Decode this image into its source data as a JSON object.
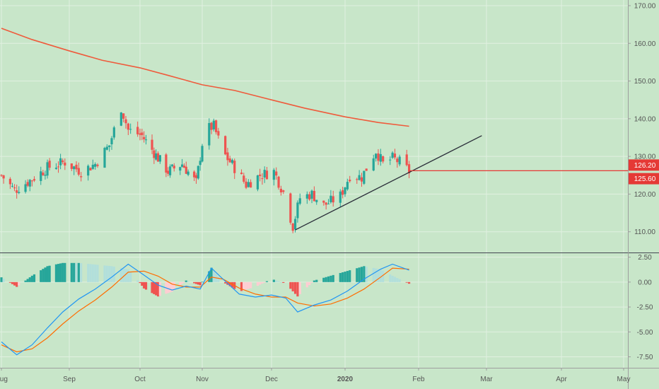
{
  "colors": {
    "background": "#c8e6c9",
    "grid": "#e1f0e1",
    "up": "#26a69a",
    "down": "#ef5350",
    "sma": "#ef5b3c",
    "trendline": "#2a2e39",
    "support": "#e53935",
    "macd": "#2196f3",
    "signal": "#ff6d00",
    "hist_up_strong": "#26a69a",
    "hist_up_weak": "#b2dfdb",
    "hist_down_strong": "#ef5350",
    "hist_down_weak": "#ffcdd2",
    "axis_text": "#555555"
  },
  "chart_data": [
    {
      "type": "candlestick",
      "y_ticks": [
        "110.00",
        "120.00",
        "130.00",
        "140.00",
        "150.00",
        "160.00",
        "170.00"
      ],
      "y_tick_values": [
        110,
        120,
        130,
        140,
        150,
        160,
        170
      ],
      "ylim": [
        104.5,
        171.5
      ],
      "x_tick_labels": [
        "Aug",
        "Sep",
        "Oct",
        "Nov",
        "Dec",
        "2020",
        "Feb",
        "Mar",
        "Apr",
        "May"
      ],
      "x_tick_dates": [
        "2019-08-01",
        "2019-09-01",
        "2019-10-01",
        "2019-11-01",
        "2019-12-01",
        "2020-01-01",
        "2020-02-01",
        "2020-03-01",
        "2020-04-01",
        "2020-05-01"
      ],
      "xlim": [
        "2019-08-01",
        "2020-05-01"
      ],
      "grid": true,
      "price_badges": [
        {
          "label": "126.20",
          "value": 126.2,
          "color": "#e53935"
        },
        {
          "label": "125.60",
          "value": 125.6,
          "color": "#e53935"
        }
      ],
      "support_level": 126.2,
      "sma_series": [
        [
          "2019-08-01",
          164.0
        ],
        [
          "2019-08-15",
          161.0
        ],
        [
          "2019-09-01",
          158.0
        ],
        [
          "2019-09-15",
          155.5
        ],
        [
          "2019-10-01",
          153.5
        ],
        [
          "2019-10-15",
          151.5
        ],
        [
          "2019-11-01",
          149.0
        ],
        [
          "2019-11-15",
          147.5
        ],
        [
          "2019-12-01",
          145.0
        ],
        [
          "2019-12-15",
          142.8
        ],
        [
          "2020-01-01",
          140.5
        ],
        [
          "2020-01-15",
          139.0
        ],
        [
          "2020-01-28",
          138.0
        ]
      ],
      "trendline": [
        [
          "2019-12-11",
          110.5
        ],
        [
          "2020-02-28",
          135.5
        ]
      ],
      "anchor_candles": [
        [
          "2019-08-01",
          125.0
        ],
        [
          "2019-08-07",
          121.0
        ],
        [
          "2019-08-15",
          124.0
        ],
        [
          "2019-08-22",
          127.0
        ],
        [
          "2019-08-30",
          128.5
        ],
        [
          "2019-09-06",
          126.0
        ],
        [
          "2019-09-12",
          128.0
        ],
        [
          "2019-09-18",
          133.0
        ],
        [
          "2019-09-23",
          143.0
        ],
        [
          "2019-09-26",
          137.0
        ],
        [
          "2019-10-02",
          135.5
        ],
        [
          "2019-10-08",
          131.0
        ],
        [
          "2019-10-15",
          126.0
        ],
        [
          "2019-10-22",
          128.0
        ],
        [
          "2019-10-29",
          123.0
        ],
        [
          "2019-11-02",
          137.0
        ],
        [
          "2019-11-06",
          138.0
        ],
        [
          "2019-11-10",
          131.0
        ],
        [
          "2019-11-15",
          127.0
        ],
        [
          "2019-11-20",
          122.5
        ],
        [
          "2019-11-26",
          125.0
        ],
        [
          "2019-12-02",
          126.0
        ],
        [
          "2019-12-06",
          120.5
        ],
        [
          "2019-12-10",
          111.5
        ],
        [
          "2019-12-13",
          119.0
        ],
        [
          "2019-12-18",
          120.0
        ],
        [
          "2019-12-23",
          117.0
        ],
        [
          "2019-12-30",
          119.5
        ],
        [
          "2020-01-03",
          125.0
        ],
        [
          "2020-01-08",
          124.5
        ],
        [
          "2020-01-14",
          131.5
        ],
        [
          "2020-01-17",
          128.0
        ],
        [
          "2020-01-21",
          129.5
        ],
        [
          "2020-01-24",
          128.5
        ],
        [
          "2020-01-28",
          126.0
        ]
      ]
    },
    {
      "type": "macd",
      "y_ticks": [
        "-7.50",
        "-5.00",
        "-2.50",
        "0.00",
        "2.50"
      ],
      "y_tick_values": [
        -7.5,
        -5.0,
        -2.5,
        0.0,
        2.5
      ],
      "ylim": [
        -8.6,
        2.9
      ],
      "macd_series": [
        [
          "2019-08-01",
          -6.0
        ],
        [
          "2019-08-08",
          -7.3
        ],
        [
          "2019-08-15",
          -6.3
        ],
        [
          "2019-08-22",
          -4.6
        ],
        [
          "2019-08-29",
          -3.0
        ],
        [
          "2019-09-05",
          -1.7
        ],
        [
          "2019-09-12",
          -0.7
        ],
        [
          "2019-09-19",
          0.5
        ],
        [
          "2019-09-26",
          1.8
        ],
        [
          "2019-10-03",
          0.7
        ],
        [
          "2019-10-10",
          -0.3
        ],
        [
          "2019-10-17",
          -0.8
        ],
        [
          "2019-10-24",
          -0.4
        ],
        [
          "2019-10-31",
          -0.7
        ],
        [
          "2019-11-05",
          1.4
        ],
        [
          "2019-11-10",
          0.3
        ],
        [
          "2019-11-17",
          -1.2
        ],
        [
          "2019-11-24",
          -1.5
        ],
        [
          "2019-12-01",
          -1.3
        ],
        [
          "2019-12-07",
          -1.6
        ],
        [
          "2019-12-12",
          -3.0
        ],
        [
          "2019-12-19",
          -2.3
        ],
        [
          "2019-12-26",
          -1.8
        ],
        [
          "2020-01-02",
          -0.9
        ],
        [
          "2020-01-09",
          0.3
        ],
        [
          "2020-01-16",
          1.3
        ],
        [
          "2020-01-21",
          1.8
        ],
        [
          "2020-01-28",
          1.2
        ]
      ],
      "signal_series": [
        [
          "2019-08-01",
          -6.3
        ],
        [
          "2019-08-08",
          -7.0
        ],
        [
          "2019-08-15",
          -6.7
        ],
        [
          "2019-08-22",
          -5.6
        ],
        [
          "2019-08-29",
          -4.2
        ],
        [
          "2019-09-05",
          -2.9
        ],
        [
          "2019-09-12",
          -1.8
        ],
        [
          "2019-09-19",
          -0.5
        ],
        [
          "2019-09-26",
          1.0
        ],
        [
          "2019-10-03",
          1.1
        ],
        [
          "2019-10-10",
          0.6
        ],
        [
          "2019-10-17",
          -0.2
        ],
        [
          "2019-10-24",
          -0.5
        ],
        [
          "2019-10-31",
          -0.5
        ],
        [
          "2019-11-05",
          0.5
        ],
        [
          "2019-11-10",
          0.3
        ],
        [
          "2019-11-17",
          -0.6
        ],
        [
          "2019-11-24",
          -1.2
        ],
        [
          "2019-12-01",
          -1.5
        ],
        [
          "2019-12-07",
          -1.5
        ],
        [
          "2019-12-12",
          -2.1
        ],
        [
          "2019-12-19",
          -2.4
        ],
        [
          "2019-12-26",
          -2.2
        ],
        [
          "2020-01-02",
          -1.6
        ],
        [
          "2020-01-09",
          -0.7
        ],
        [
          "2020-01-16",
          0.5
        ],
        [
          "2020-01-21",
          1.4
        ],
        [
          "2020-01-28",
          1.3
        ]
      ]
    }
  ]
}
